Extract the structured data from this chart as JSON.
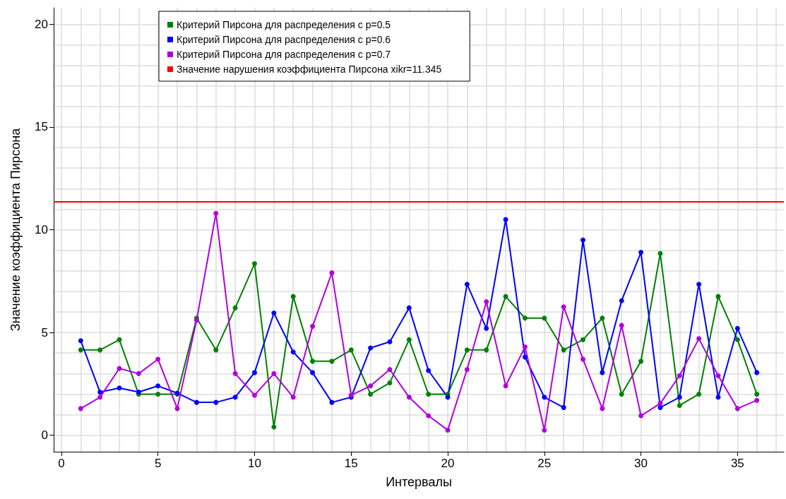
{
  "chart_data": {
    "type": "line",
    "xlabel": "Интервалы",
    "ylabel": "Значение коэффициента Пирсона",
    "x": [
      1,
      2,
      3,
      4,
      5,
      6,
      7,
      8,
      9,
      10,
      11,
      12,
      13,
      14,
      15,
      16,
      17,
      18,
      19,
      20,
      21,
      22,
      23,
      24,
      25,
      26,
      27,
      28,
      29,
      30,
      31,
      32,
      33,
      34,
      35,
      36
    ],
    "series": [
      {
        "name": "Критерий Пирсона для распределения с p=0.5",
        "color": "#008000",
        "values": [
          4.15,
          4.15,
          4.65,
          2.0,
          2.0,
          2.0,
          5.7,
          4.15,
          6.2,
          8.35,
          0.4,
          6.75,
          3.6,
          3.6,
          4.15,
          2.0,
          2.55,
          4.65,
          2.0,
          2.0,
          4.15,
          4.15,
          6.75,
          5.7,
          5.7,
          4.15,
          4.65,
          5.7,
          2.0,
          3.6,
          8.85,
          1.45,
          2.0,
          6.75,
          4.65,
          2.0
        ]
      },
      {
        "name": "Критерий Пирсона для распределения с p=0.6",
        "color": "#0000ff",
        "values": [
          4.6,
          2.1,
          2.3,
          2.1,
          2.4,
          2.05,
          1.6,
          1.6,
          1.85,
          3.05,
          5.95,
          4.05,
          3.05,
          1.6,
          1.85,
          4.25,
          4.55,
          6.2,
          3.15,
          1.85,
          7.35,
          5.2,
          10.5,
          3.8,
          1.85,
          1.35,
          9.5,
          3.05,
          6.55,
          8.9,
          1.35,
          1.85,
          7.35,
          1.85,
          5.2,
          3.05
        ]
      },
      {
        "name": "Критерий Пирсона для распределения с p=0.7",
        "color": "#b000e0",
        "values": [
          1.3,
          1.85,
          3.25,
          3.0,
          3.7,
          1.3,
          5.6,
          10.8,
          3.0,
          1.95,
          3.0,
          1.85,
          5.3,
          7.9,
          1.95,
          2.4,
          3.2,
          1.85,
          0.95,
          0.25,
          3.2,
          6.5,
          2.4,
          4.3,
          0.25,
          6.25,
          3.7,
          1.3,
          5.35,
          0.95,
          1.55,
          2.9,
          4.7,
          2.9,
          1.3,
          1.7
        ]
      }
    ],
    "ref_lines": [
      {
        "axis": "y",
        "value": 11.345,
        "label": "Значение нарушения коэффициента Пирсона xikr=11.345",
        "color": "#ff0000"
      }
    ],
    "xlim": [
      -0.4,
      37.4
    ],
    "xticks": [
      0,
      {
        "value": 1,
        "label": null
      },
      {
        "value": 2,
        "label": null
      },
      {
        "value": 3,
        "label": null
      },
      {
        "value": 4,
        "label": null
      },
      5,
      {
        "value": 6,
        "label": null
      },
      {
        "value": 7,
        "label": null
      },
      {
        "value": 8,
        "label": null
      },
      {
        "value": 9,
        "label": null
      },
      10,
      {
        "value": 11,
        "label": null
      },
      {
        "value": 12,
        "label": null
      },
      {
        "value": 13,
        "label": null
      },
      {
        "value": 14,
        "label": null
      },
      15,
      {
        "value": 16,
        "label": null
      },
      {
        "value": 17,
        "label": null
      },
      {
        "value": 18,
        "label": null
      },
      {
        "value": 19,
        "label": null
      },
      20,
      {
        "value": 21,
        "label": null
      },
      {
        "value": 22,
        "label": null
      },
      {
        "value": 23,
        "label": null
      },
      {
        "value": 24,
        "label": null
      },
      25,
      {
        "value": 26,
        "label": null
      },
      {
        "value": 27,
        "label": null
      },
      {
        "value": 28,
        "label": null
      },
      {
        "value": 29,
        "label": null
      },
      30,
      {
        "value": 31,
        "label": null
      },
      {
        "value": 32,
        "label": null
      },
      {
        "value": 33,
        "label": null
      },
      {
        "value": 34,
        "label": null
      },
      35,
      {
        "value": 36,
        "label": null
      },
      {
        "value": 37,
        "label": null
      }
    ],
    "ylim": [
      -0.8,
      20.8
    ],
    "yticks": [
      0,
      {
        "value": 1,
        "label": null
      },
      {
        "value": 2,
        "label": null
      },
      {
        "value": 3,
        "label": null
      },
      {
        "value": 4,
        "label": null
      },
      5,
      {
        "value": 6,
        "label": null
      },
      {
        "value": 7,
        "label": null
      },
      {
        "value": 8,
        "label": null
      },
      {
        "value": 9,
        "label": null
      },
      10,
      {
        "value": 11,
        "label": null
      },
      {
        "value": 12,
        "label": null
      },
      {
        "value": 13,
        "label": null
      },
      {
        "value": 14,
        "label": null
      },
      15,
      {
        "value": 16,
        "label": null
      },
      {
        "value": 17,
        "label": null
      },
      {
        "value": 18,
        "label": null
      },
      {
        "value": 19,
        "label": null
      },
      20
    ],
    "grid": true,
    "legend": "top",
    "marker": "circle",
    "line_style": "solid"
  }
}
